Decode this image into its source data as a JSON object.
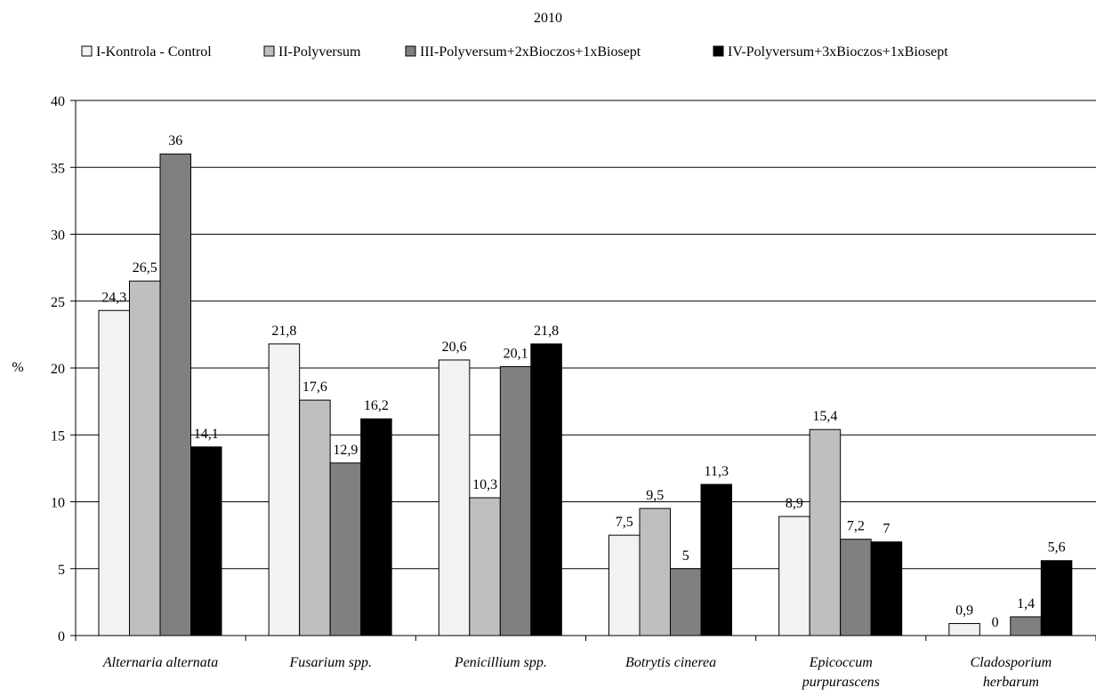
{
  "chart_data": {
    "type": "bar",
    "title": "2010",
    "xlabel": "",
    "ylabel": "%",
    "ylim": [
      0,
      40
    ],
    "yticks": [
      0,
      5,
      10,
      15,
      20,
      25,
      30,
      35,
      40
    ],
    "grid": true,
    "legend_position": "top",
    "categories": [
      [
        "Alternaria alternata"
      ],
      [
        "Fusarium spp."
      ],
      [
        "Penicillium spp."
      ],
      [
        "Botrytis cinerea"
      ],
      [
        "Epicoccum",
        "purpurascens"
      ],
      [
        "Cladosporium",
        "herbarum"
      ]
    ],
    "series": [
      {
        "name": "I-Kontrola - Control",
        "color": "#f2f2f2",
        "values": [
          24.3,
          21.8,
          20.6,
          7.5,
          8.9,
          0.9
        ],
        "labels": [
          "24,3",
          "21,8",
          "20,6",
          "7,5",
          "8,9",
          "0,9"
        ]
      },
      {
        "name": "II-Polyversum",
        "color": "#bfbfbf",
        "values": [
          26.5,
          17.6,
          10.3,
          9.5,
          15.4,
          0
        ],
        "labels": [
          "26,5",
          "17,6",
          "10,3",
          "9,5",
          "15,4",
          "0"
        ]
      },
      {
        "name": "III-Polyversum+2xBioczos+1xBiosept",
        "color": "#808080",
        "values": [
          36,
          12.9,
          20.1,
          5,
          7.2,
          1.4
        ],
        "labels": [
          "36",
          "12,9",
          "20,1",
          "5",
          "7,2",
          "1,4"
        ]
      },
      {
        "name": "IV-Polyversum+3xBioczos+1xBiosept",
        "color": "#000000",
        "values": [
          14.1,
          16.2,
          21.8,
          11.3,
          7,
          5.6
        ],
        "labels": [
          "14,1",
          "16,2",
          "21,8",
          "11,3",
          "7",
          "5,6"
        ]
      }
    ]
  }
}
